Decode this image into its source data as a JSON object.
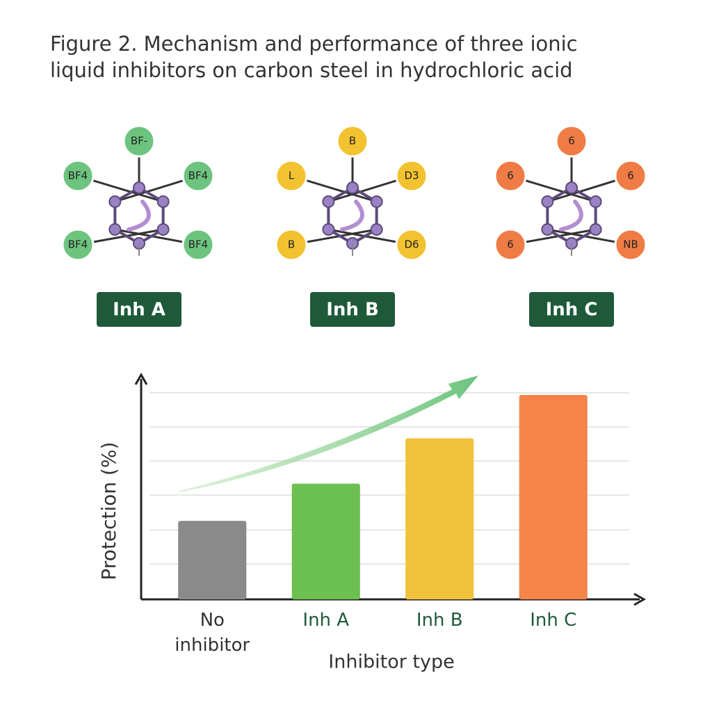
{
  "title": "Figure 2. Mechanism and performance of three ionic liquid inhibitors on carbon steel in hydrochloric acid",
  "molecules": [
    {
      "label": "Inh A",
      "color": "#6cc47e",
      "groups": [
        "BF-",
        "BF4",
        "BF4",
        "BF4",
        "BF4"
      ]
    },
    {
      "label": "Inh B",
      "color": "#f2c230",
      "groups": [
        "B",
        "L",
        "D3",
        "B",
        "D6"
      ]
    },
    {
      "label": "Inh C",
      "color": "#f07c45",
      "groups": [
        "6",
        "6",
        "6",
        "6",
        "NB"
      ]
    }
  ],
  "chart_data": {
    "type": "bar",
    "y_label": "Protection (%)",
    "x_label": "Inhibitor type",
    "categories": [
      "No inhibitor",
      "Inh A",
      "Inh B",
      "Inh C"
    ],
    "values": [
      38,
      56,
      78,
      99
    ],
    "colors": [
      "#8a8a8a",
      "#6cc04f",
      "#f0c23c",
      "#f4844a"
    ],
    "ylim": [
      0,
      100
    ]
  }
}
